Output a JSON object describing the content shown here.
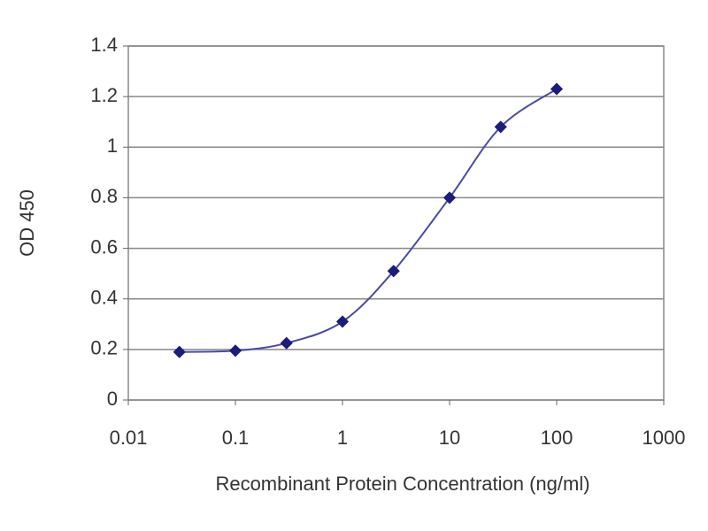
{
  "chart_data": {
    "type": "scatter",
    "x_label": "Recombinant Protein Concentration (ng/ml)",
    "y_label": "OD 450",
    "x": [
      0.03,
      0.1,
      0.3,
      1,
      3,
      10,
      30,
      100
    ],
    "series": [
      {
        "color": "#1c1c7a",
        "line_color": "#4a4aa8",
        "values": [
          0.19,
          0.195,
          0.225,
          0.31,
          0.51,
          0.8,
          1.08,
          1.23
        ]
      }
    ],
    "x_log": true,
    "smooth_line": true,
    "xlim": [
      0.01,
      1000
    ],
    "xticks": [
      0.01,
      0.1,
      1,
      10,
      100,
      1000
    ],
    "ylim": [
      0,
      1.4
    ],
    "yticks": [
      0,
      0.2,
      0.4,
      0.6,
      0.8,
      1,
      1.2,
      1.4
    ],
    "grid": true
  }
}
